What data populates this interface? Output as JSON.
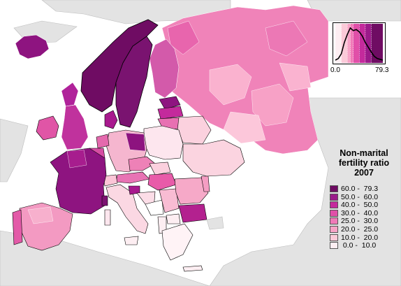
{
  "legend": {
    "title_line1": "Non-marital",
    "title_line2": "fertility ratio",
    "title_line3": "2007",
    "classes": [
      {
        "label": "60.0 -  79.3",
        "color": "#6f0c63"
      },
      {
        "label": "50.0 -  60.0",
        "color": "#9b1a8a"
      },
      {
        "label": "40.0 -  50.0",
        "color": "#c42a9c"
      },
      {
        "label": "30.0 -  40.0",
        "color": "#e14fa8"
      },
      {
        "label": "25.0 -  30.0",
        "color": "#f07ab8"
      },
      {
        "label": "20.0 -  25.0",
        "color": "#f7a3c6"
      },
      {
        "label": "10.0 -  20.0",
        "color": "#fbcad8"
      },
      {
        "label": " 0.0 -  10.0",
        "color": "#fdeef2"
      }
    ]
  },
  "distribution": {
    "min_label": "0.0",
    "max_label": "79.3",
    "bin_breaks": [
      0,
      10,
      20,
      25,
      30,
      40,
      50,
      60,
      79.3
    ],
    "curve": [
      [
        0,
        0
      ],
      [
        5,
        0.05
      ],
      [
        10,
        0.2
      ],
      [
        15,
        0.55
      ],
      [
        20,
        0.8
      ],
      [
        25,
        1.0
      ],
      [
        30,
        0.92
      ],
      [
        35,
        0.95
      ],
      [
        40,
        0.88
      ],
      [
        45,
        0.75
      ],
      [
        50,
        0.55
      ],
      [
        55,
        0.4
      ],
      [
        60,
        0.25
      ],
      [
        65,
        0.12
      ],
      [
        70,
        0.05
      ],
      [
        79.3,
        0
      ]
    ]
  },
  "colors": {
    "sea": "#ffffff",
    "land_no_data": "#e6e6e6",
    "border": "#000000",
    "subborder": "#ffffff"
  }
}
